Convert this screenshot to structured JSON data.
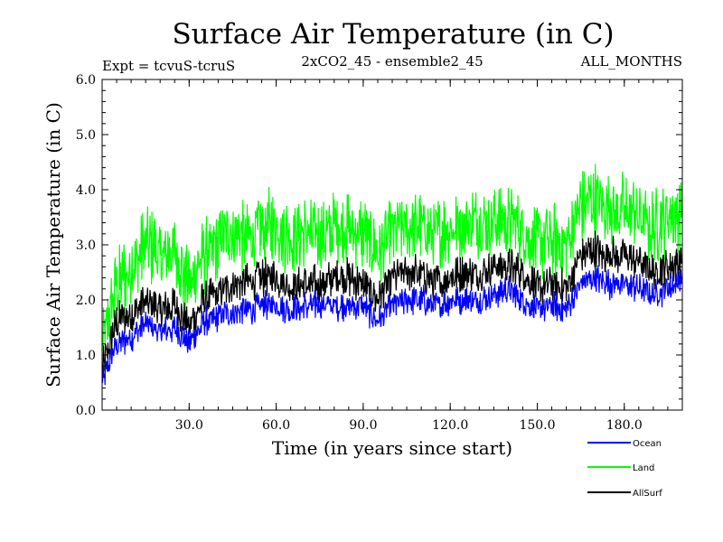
{
  "chart_data": {
    "type": "line",
    "title": "Surface Air Temperature (in C)",
    "subtitle_left": "Expt = tcvuS-tcruS",
    "subtitle_center": "2xCO2_45 - ensemble2_45",
    "subtitle_right": "ALL_MONTHS",
    "xlabel": "Time (in years since start)",
    "ylabel": "Surface Air Temperature (in C)",
    "xlim": [
      0,
      200
    ],
    "ylim": [
      0,
      6
    ],
    "x_ticks": [
      30,
      60,
      90,
      120,
      150,
      180
    ],
    "x_tick_labels": [
      "30.0",
      "60.0",
      "90.0",
      "120.0",
      "150.0",
      "180.0"
    ],
    "y_ticks": [
      0,
      1,
      2,
      3,
      4,
      5,
      6
    ],
    "y_tick_labels": [
      "0.0",
      "1.0",
      "2.0",
      "3.0",
      "4.0",
      "5.0",
      "6.0"
    ],
    "grid": false,
    "legend_position": "bottom-right",
    "x": [
      0,
      5,
      10,
      15,
      20,
      25,
      30,
      35,
      40,
      45,
      50,
      55,
      60,
      65,
      70,
      75,
      80,
      85,
      90,
      95,
      100,
      105,
      110,
      115,
      120,
      125,
      130,
      135,
      140,
      145,
      150,
      155,
      160,
      165,
      170,
      175,
      180,
      185,
      190,
      195,
      200
    ],
    "series": [
      {
        "name": "Ocean",
        "color": "#0000ff",
        "values": [
          0.5,
          1.2,
          1.3,
          1.6,
          1.4,
          1.5,
          1.2,
          1.6,
          1.7,
          1.8,
          1.8,
          1.9,
          1.9,
          1.8,
          1.9,
          1.9,
          1.9,
          1.9,
          1.9,
          1.6,
          1.9,
          2.0,
          2.0,
          1.9,
          2.0,
          2.0,
          2.0,
          2.1,
          2.2,
          2.0,
          1.8,
          1.9,
          1.8,
          2.3,
          2.4,
          2.3,
          2.3,
          2.2,
          2.1,
          2.2,
          2.4
        ]
      },
      {
        "name": "Land",
        "color": "#00ff00",
        "values": [
          1.1,
          2.3,
          2.6,
          3.0,
          2.8,
          2.9,
          2.2,
          2.8,
          3.0,
          3.3,
          3.1,
          3.3,
          3.4,
          3.1,
          3.2,
          3.2,
          3.3,
          3.3,
          3.2,
          2.9,
          3.2,
          3.3,
          3.3,
          3.2,
          3.3,
          3.4,
          3.4,
          3.5,
          3.4,
          3.3,
          3.0,
          3.1,
          3.0,
          3.7,
          3.8,
          3.7,
          3.6,
          3.5,
          3.3,
          3.5,
          3.6
        ]
      },
      {
        "name": "AllSurf",
        "color": "#000000",
        "values": [
          0.7,
          1.6,
          1.7,
          2.0,
          1.8,
          1.9,
          1.5,
          2.0,
          2.1,
          2.3,
          2.3,
          2.4,
          2.4,
          2.2,
          2.3,
          2.3,
          2.4,
          2.4,
          2.3,
          2.0,
          2.4,
          2.5,
          2.5,
          2.3,
          2.4,
          2.5,
          2.5,
          2.6,
          2.6,
          2.5,
          2.2,
          2.3,
          2.2,
          2.8,
          2.9,
          2.8,
          2.8,
          2.7,
          2.5,
          2.6,
          2.7
        ]
      }
    ]
  }
}
